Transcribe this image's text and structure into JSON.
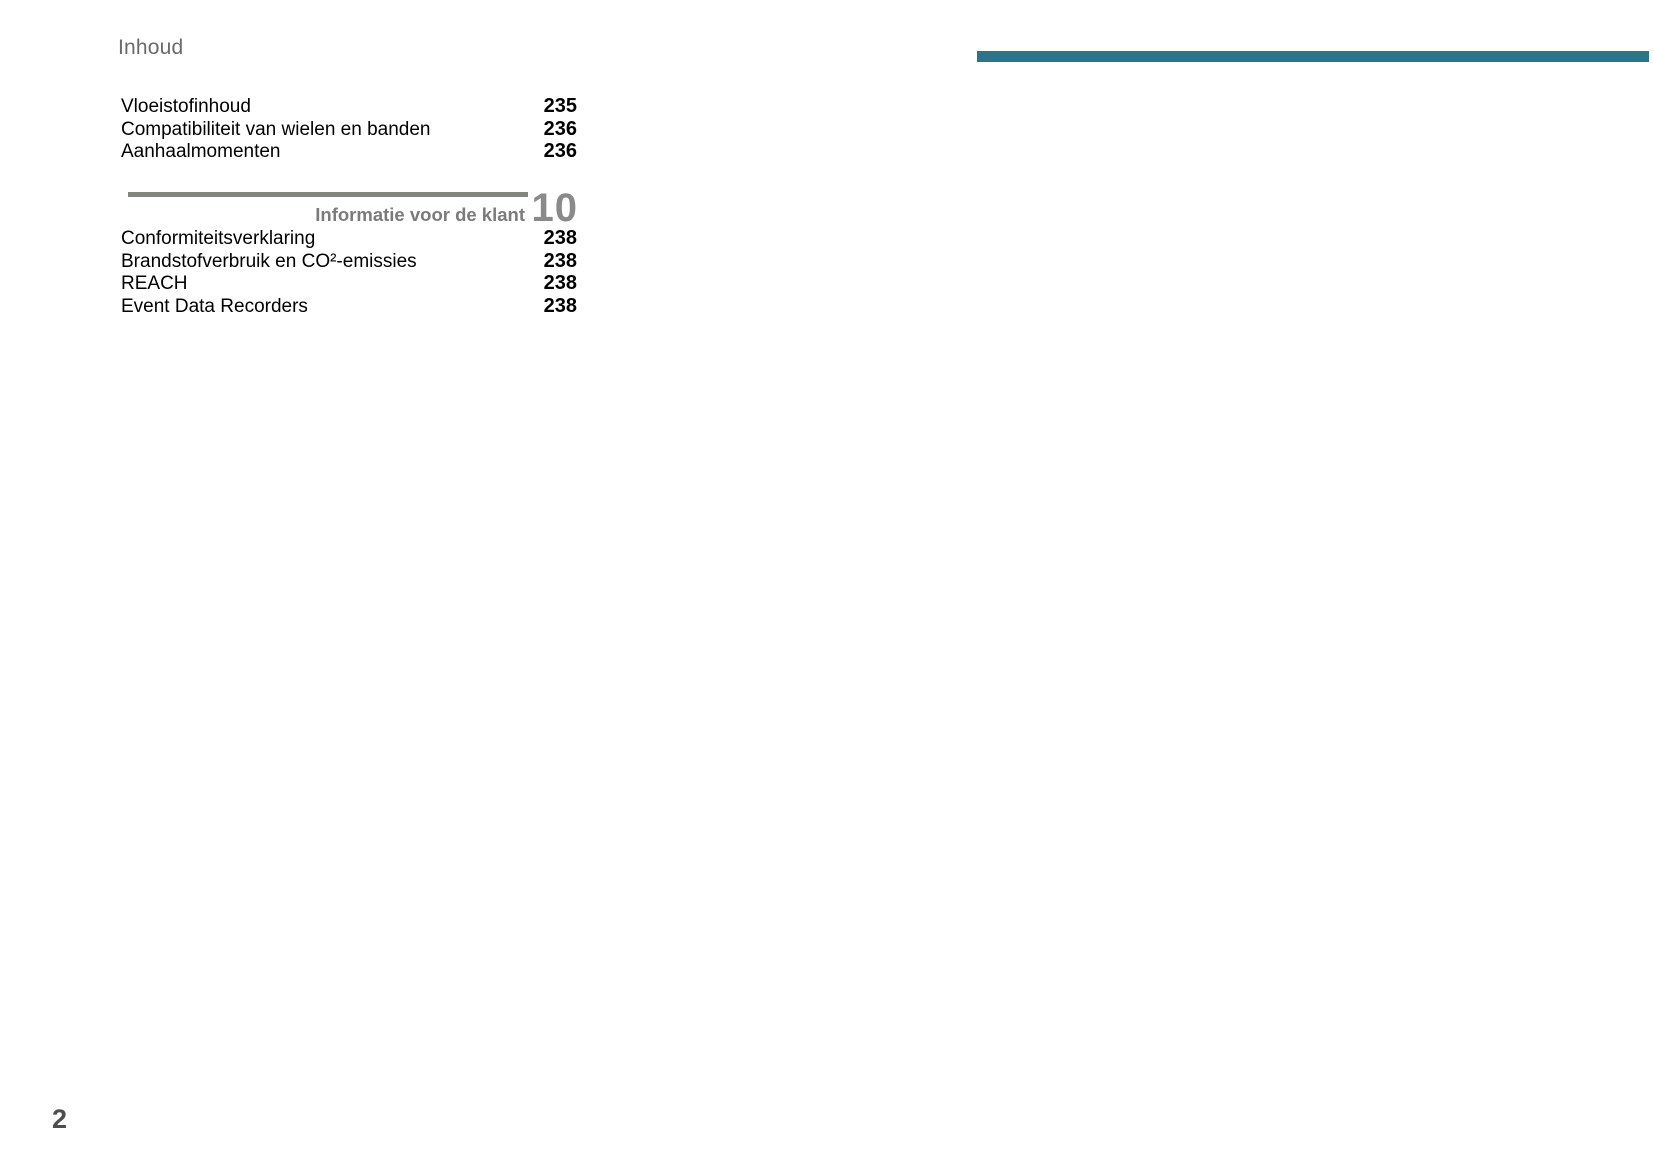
{
  "header": {
    "title": "Inhoud"
  },
  "colors": {
    "accent_bar": "#2a7589",
    "chapter_gray": "#8a8a8a",
    "rule_gray": "#82867e"
  },
  "toc": {
    "section1": {
      "entries": [
        {
          "label": "Vloeistofinhoud",
          "page": "235"
        },
        {
          "label": "Compatibiliteit van wielen en banden",
          "page": "236"
        },
        {
          "label": "Aanhaalmomenten",
          "page": "236"
        }
      ]
    },
    "section2": {
      "chapter_number": "10",
      "chapter_title": "Informatie voor de klant",
      "entries": [
        {
          "label": "Conformiteitsverklaring",
          "page": "238"
        },
        {
          "label": "Brandstofverbruik en CO²-emissies",
          "page": "238"
        },
        {
          "label": "REACH",
          "page": "238"
        },
        {
          "label": "Event Data Recorders",
          "page": "238"
        }
      ]
    }
  },
  "footer": {
    "page_number": "2"
  }
}
